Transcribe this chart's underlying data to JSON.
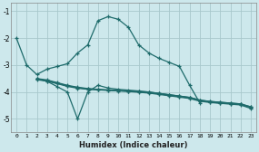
{
  "xlabel": "Humidex (Indice chaleur)",
  "bg_color": "#cde8ec",
  "grid_color": "#a8c8cc",
  "line_color": "#1e6b6b",
  "line_peak_x": [
    0,
    1,
    2,
    3,
    4,
    5,
    6,
    7,
    8,
    9,
    10,
    11,
    12,
    13,
    14,
    15,
    16,
    17,
    18
  ],
  "line_peak_y": [
    -2.0,
    -3.0,
    -3.35,
    -3.15,
    -3.05,
    -2.95,
    -2.55,
    -2.25,
    -1.35,
    -1.2,
    -1.3,
    -1.6,
    -2.25,
    -2.55,
    -2.75,
    -2.9,
    -3.05,
    -3.75,
    -4.4
  ],
  "line_flat1_x": [
    2,
    3,
    4,
    5,
    6,
    7,
    8,
    9,
    10,
    11,
    12,
    13,
    14,
    15,
    16,
    17,
    18,
    19,
    20,
    21,
    22,
    23
  ],
  "line_flat1_y": [
    -3.5,
    -3.55,
    -3.65,
    -3.75,
    -3.82,
    -3.87,
    -3.9,
    -3.92,
    -3.94,
    -3.96,
    -3.98,
    -4.0,
    -4.05,
    -4.1,
    -4.15,
    -4.2,
    -4.3,
    -4.35,
    -4.38,
    -4.41,
    -4.44,
    -4.55
  ],
  "line_flat2_x": [
    2,
    3,
    4,
    5,
    6,
    7,
    8,
    9,
    10,
    11,
    12,
    13,
    14,
    15,
    16,
    17,
    18,
    19,
    20,
    21,
    22,
    23
  ],
  "line_flat2_y": [
    -3.52,
    -3.58,
    -3.67,
    -3.77,
    -3.84,
    -3.88,
    -3.91,
    -3.93,
    -3.95,
    -3.97,
    -3.99,
    -4.02,
    -4.07,
    -4.12,
    -4.17,
    -4.22,
    -4.32,
    -4.37,
    -4.41,
    -4.43,
    -4.46,
    -4.58
  ],
  "line_flat3_x": [
    2,
    3,
    4,
    5,
    6,
    7,
    8,
    9,
    10,
    11,
    12,
    13,
    14,
    15,
    16,
    17,
    18,
    19,
    20,
    21,
    22,
    23
  ],
  "line_flat3_y": [
    -3.54,
    -3.6,
    -3.69,
    -3.79,
    -3.86,
    -3.9,
    -3.92,
    -3.94,
    -3.96,
    -3.98,
    -4.01,
    -4.04,
    -4.09,
    -4.14,
    -4.19,
    -4.24,
    -4.34,
    -4.39,
    -4.42,
    -4.45,
    -4.48,
    -4.61
  ],
  "line_zigzag_x": [
    2,
    3,
    4,
    5,
    6,
    7,
    8,
    9,
    10,
    11,
    12,
    13,
    14,
    15,
    16,
    17,
    18,
    19,
    20,
    21,
    22,
    23
  ],
  "line_zigzag_y": [
    -3.5,
    -3.6,
    -3.8,
    -4.0,
    -5.0,
    -4.0,
    -3.75,
    -3.85,
    -3.9,
    -3.93,
    -3.96,
    -4.0,
    -4.05,
    -4.1,
    -4.15,
    -4.2,
    -4.3,
    -4.35,
    -4.38,
    -4.41,
    -4.44,
    -4.55
  ],
  "xlim": [
    -0.5,
    23.5
  ],
  "ylim": [
    -5.5,
    -0.7
  ],
  "yticks": [
    -5,
    -4,
    -3,
    -2,
    -1
  ],
  "xticks": [
    0,
    1,
    2,
    3,
    4,
    5,
    6,
    7,
    8,
    9,
    10,
    11,
    12,
    13,
    14,
    15,
    16,
    17,
    18,
    19,
    20,
    21,
    22,
    23
  ]
}
